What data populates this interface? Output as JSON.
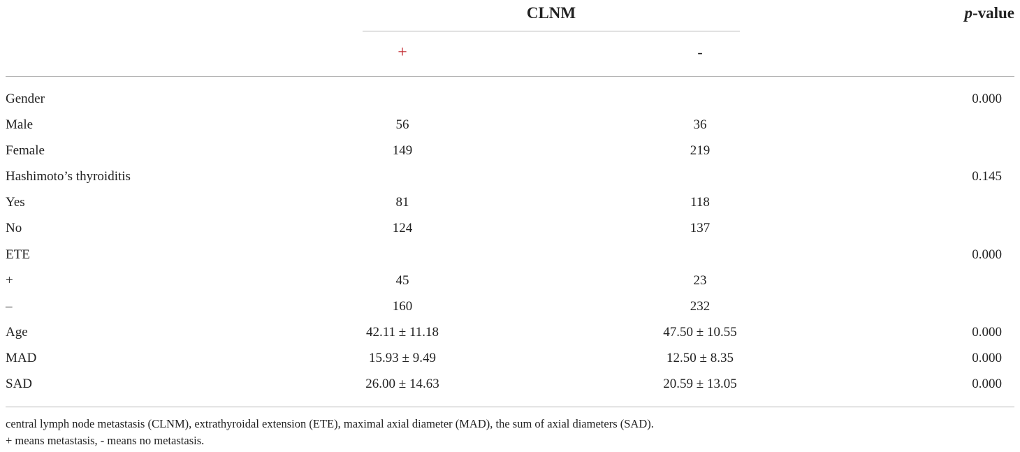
{
  "header": {
    "group_label": "CLNM",
    "pvalue_italic": "p",
    "pvalue_suffix": "-value",
    "sub_pos": "+",
    "sub_neg": "-"
  },
  "rows": [
    {
      "label": "Gender",
      "pos": "",
      "neg": "",
      "p": "0.000"
    },
    {
      "label": "Male",
      "pos": "56",
      "neg": "36",
      "p": ""
    },
    {
      "label": "Female",
      "pos": "149",
      "neg": "219",
      "p": ""
    },
    {
      "label": "Hashimoto’s thyroiditis",
      "pos": "",
      "neg": "",
      "p": "0.145"
    },
    {
      "label": "Yes",
      "pos": "81",
      "neg": "118",
      "p": ""
    },
    {
      "label": "No",
      "pos": "124",
      "neg": "137",
      "p": ""
    },
    {
      "label": "ETE",
      "pos": "",
      "neg": "",
      "p": "0.000"
    },
    {
      "label": "+",
      "pos": "45",
      "neg": "23",
      "p": ""
    },
    {
      "label": "–",
      "pos": "160",
      "neg": "232",
      "p": ""
    },
    {
      "label": "Age",
      "pos": "42.11 ± 11.18",
      "neg": "47.50 ± 10.55",
      "p": "0.000"
    },
    {
      "label": "MAD",
      "pos": "15.93 ± 9.49",
      "neg": "12.50 ± 8.35",
      "p": "0.000"
    },
    {
      "label": "SAD",
      "pos": "26.00 ± 14.63",
      "neg": "20.59 ± 13.05",
      "p": "0.000"
    }
  ],
  "footnotes": [
    "central lymph node metastasis (CLNM), extrathyroidal extension (ETE), maximal axial diameter (MAD), the sum of axial diameters (SAD).",
    "+ means metastasis, - means no metastasis."
  ],
  "colors": {
    "plus_header": "#c0272d",
    "rule": "#b5b5b5",
    "text": "#222222"
  }
}
